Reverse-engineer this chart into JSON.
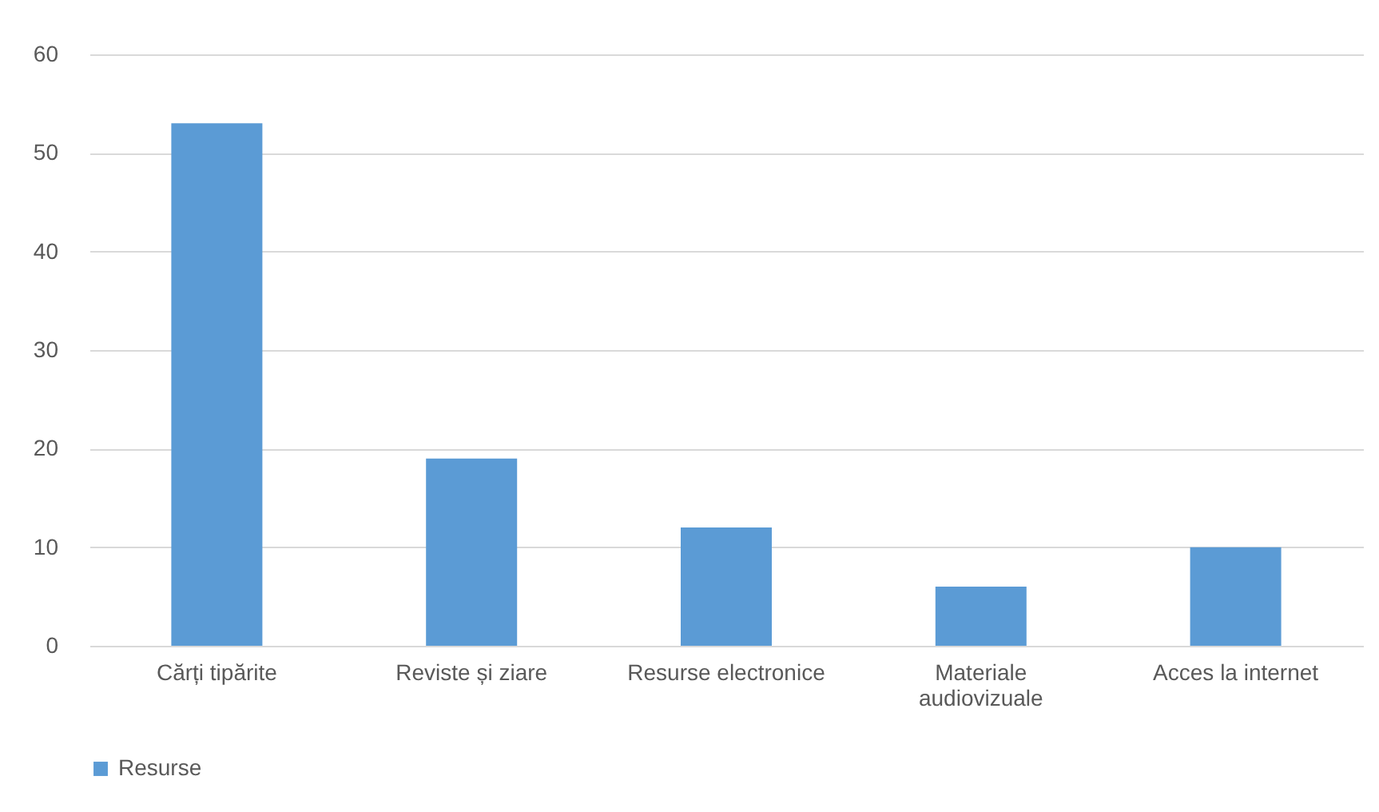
{
  "chart_data": {
    "type": "bar",
    "categories": [
      "Cărți tipărite",
      "Reviste și ziare",
      "Resurse electronice",
      "Materiale audiovizuale",
      "Acces la internet"
    ],
    "series": [
      {
        "name": "Resurse",
        "color": "#5b9bd5",
        "values": [
          53,
          19,
          12,
          6,
          10
        ]
      }
    ],
    "ylim": [
      0,
      60
    ],
    "yticks": [
      0,
      10,
      20,
      30,
      40,
      50,
      60
    ],
    "grid": "y",
    "legend": "bottom"
  }
}
